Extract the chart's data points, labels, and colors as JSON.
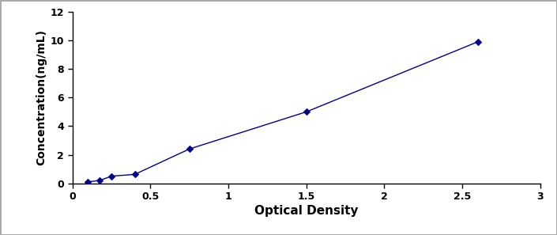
{
  "x": [
    0.1,
    0.175,
    0.25,
    0.4,
    0.75,
    1.5,
    2.6
  ],
  "y": [
    0.1,
    0.2,
    0.5,
    0.625,
    2.4,
    5.0,
    9.9
  ],
  "line_color": "#00008B",
  "marker_color": "#00008B",
  "marker_style": "D",
  "marker_size": 4,
  "line_width": 1.0,
  "xlabel": "Optical Density",
  "ylabel": "Concentration(ng/mL)",
  "xlim": [
    0,
    3.0
  ],
  "ylim": [
    0,
    12
  ],
  "xticks": [
    0,
    0.5,
    1,
    1.5,
    2,
    2.5,
    3
  ],
  "yticks": [
    0,
    2,
    4,
    6,
    8,
    10,
    12
  ],
  "xlabel_fontsize": 11,
  "ylabel_fontsize": 10,
  "tick_fontsize": 9,
  "background_color": "#ffffff",
  "figure_background": "#ffffff",
  "border_color": "#aaaaaa"
}
